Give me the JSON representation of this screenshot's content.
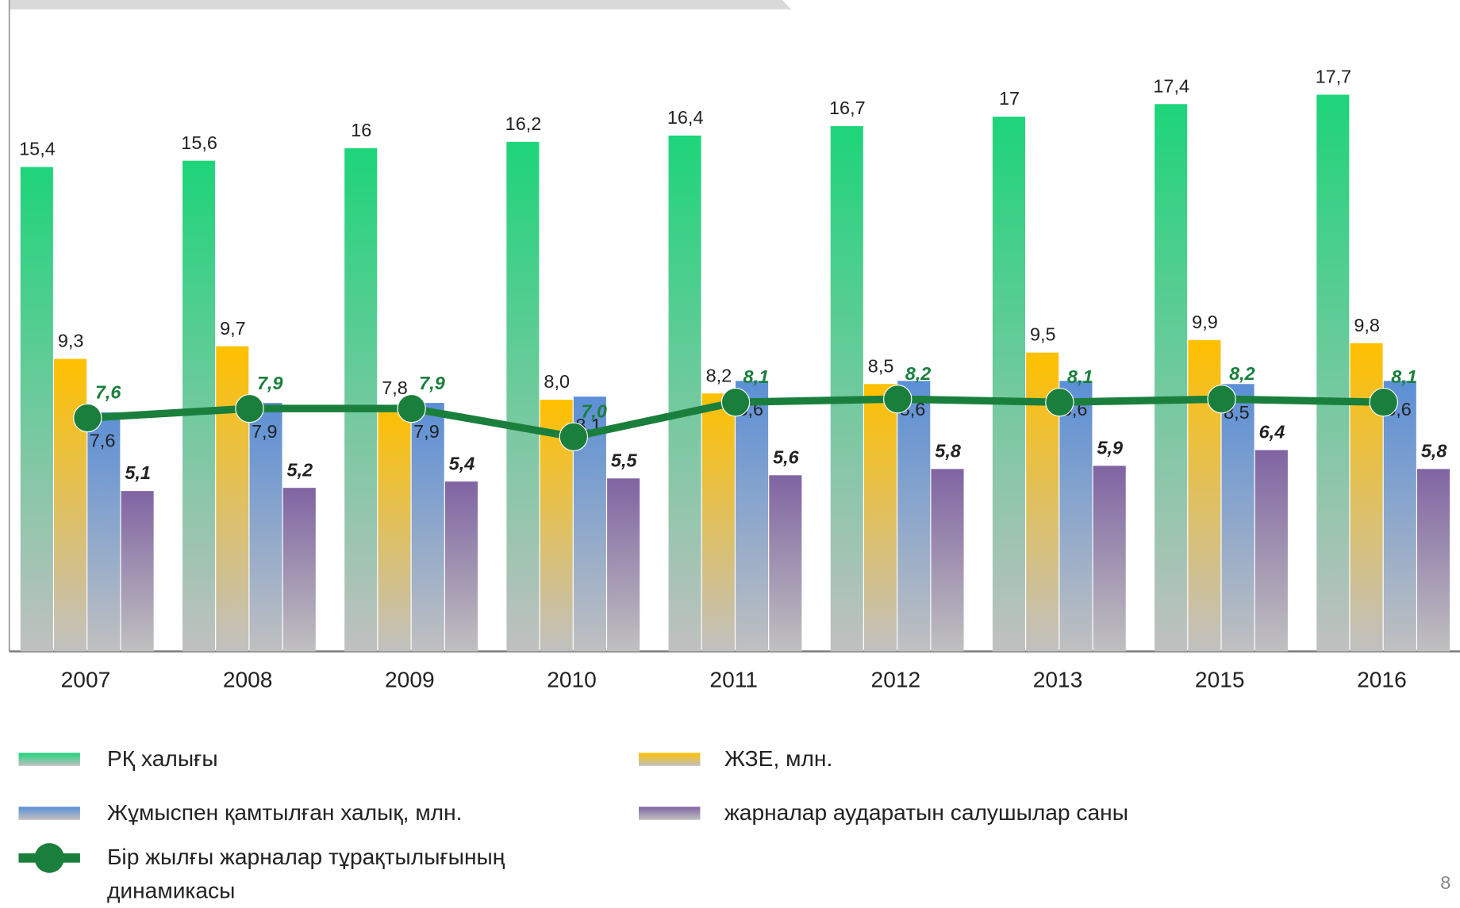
{
  "chart_data": {
    "type": "bar",
    "categories": [
      "2007",
      "2008",
      "2009",
      "2010",
      "2011",
      "2012",
      "2013",
      "2015",
      "2016"
    ],
    "series": [
      {
        "name": "РҚ халығы",
        "color": "#1ed47a",
        "values": [
          15.4,
          15.6,
          16,
          16.2,
          16.4,
          16.7,
          17,
          17.4,
          17.7
        ],
        "value_labels": [
          "15,4",
          "15,6",
          "16",
          "16,2",
          "16,4",
          "16,7",
          "17",
          "17,4",
          "17,7"
        ]
      },
      {
        "name": "ЖЗЕ, млн.",
        "color": "#ffc000",
        "values": [
          9.3,
          9.7,
          7.8,
          8.0,
          8.2,
          8.5,
          9.5,
          9.9,
          9.8
        ],
        "value_labels": [
          "9,3",
          "9,7",
          "7,8",
          "8,0",
          "8,2",
          "8,5",
          "9,5",
          "9,9",
          "9,8"
        ]
      },
      {
        "name": "Жұмыспен қамтылған халық, млн.",
        "color": "#5b8fd6",
        "values": [
          7.6,
          7.9,
          7.9,
          8.1,
          8.6,
          8.6,
          8.6,
          8.5,
          8.6
        ],
        "value_labels": [
          "7,6",
          "7,9",
          "7,9",
          "8,1",
          "8,6",
          "8,6",
          "8,6",
          "8,5",
          "8,6"
        ]
      },
      {
        "name": "жарналар аударатын салушылар саны",
        "color": "#8064a2",
        "values": [
          5.1,
          5.2,
          5.4,
          5.5,
          5.6,
          5.8,
          5.9,
          6.4,
          5.8
        ],
        "value_labels": [
          "5,1",
          "5,2",
          "5,4",
          "5,5",
          "5,6",
          "5,8",
          "5,9",
          "6,4",
          "5,8"
        ]
      },
      {
        "name": "Бір жылғы жарналар тұрақтылығының динамикасы",
        "type": "line",
        "color": "#1a7f3c",
        "values": [
          7.6,
          7.9,
          7.9,
          7.0,
          8.1,
          8.2,
          8.1,
          8.2,
          8.1
        ],
        "value_labels": [
          "7,6",
          "7,9",
          "7,9",
          "7,0",
          "8,1",
          "8,2",
          "8,1",
          "8,2",
          "8,1"
        ]
      }
    ]
  },
  "page_number": "8"
}
